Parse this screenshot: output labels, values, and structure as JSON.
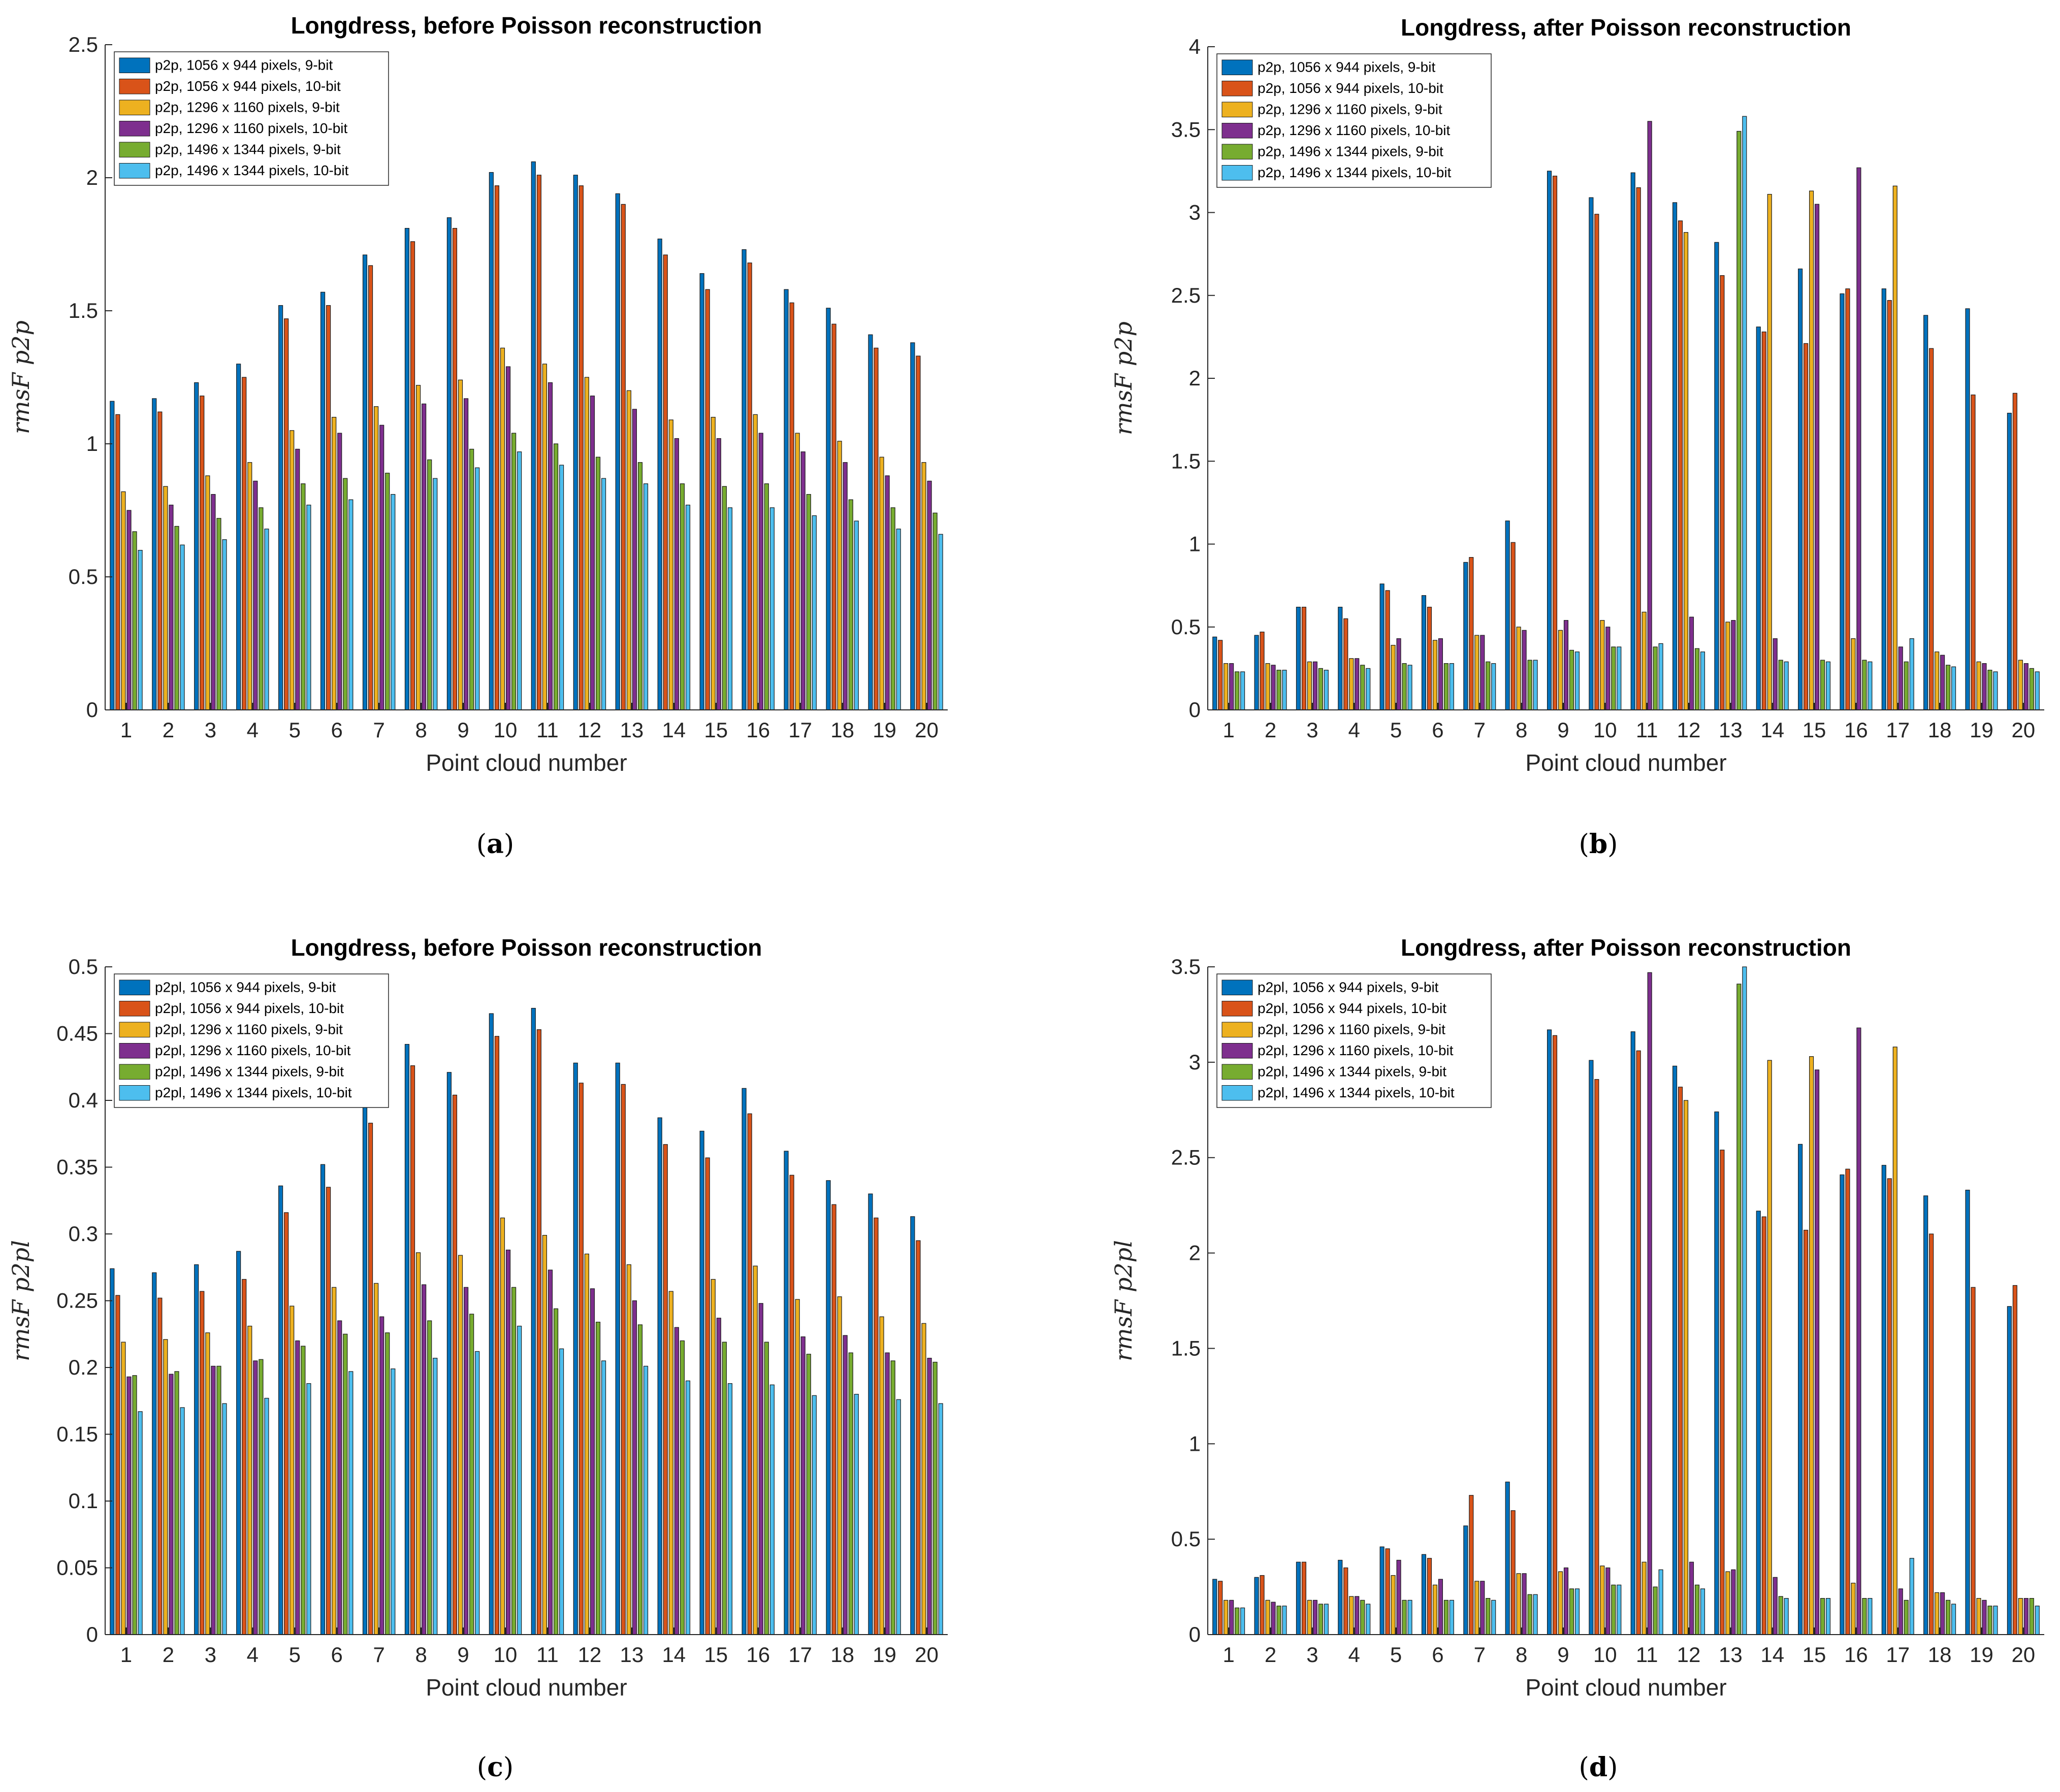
{
  "colors": [
    "#0072BD",
    "#D95319",
    "#EDB120",
    "#7E2F8E",
    "#77AC30",
    "#4DBEEE"
  ],
  "chart_data": [
    {
      "type": "bar",
      "caption": "a",
      "title": "Longdress, before Poisson reconstruction",
      "xlabel": "Point cloud number",
      "ylabel": "rmsF p2p",
      "ylim": [
        0,
        2.5
      ],
      "yticks": [
        "0",
        "0.5",
        "1",
        "1.5",
        "2",
        "2.5"
      ],
      "categories": [
        "1",
        "2",
        "3",
        "4",
        "5",
        "6",
        "7",
        "8",
        "9",
        "10",
        "11",
        "12",
        "13",
        "14",
        "15",
        "16",
        "17",
        "18",
        "19",
        "20"
      ],
      "series": [
        {
          "name": "p2p, 1056 x 944 pixels, 9-bit",
          "values": [
            1.16,
            1.17,
            1.23,
            1.3,
            1.52,
            1.57,
            1.71,
            1.81,
            1.85,
            2.02,
            2.06,
            2.01,
            1.94,
            1.77,
            1.64,
            1.73,
            1.58,
            1.51,
            1.41,
            1.38
          ]
        },
        {
          "name": "p2p, 1056 x 944 pixels, 10-bit",
          "values": [
            1.11,
            1.12,
            1.18,
            1.25,
            1.47,
            1.52,
            1.67,
            1.76,
            1.81,
            1.97,
            2.01,
            1.97,
            1.9,
            1.71,
            1.58,
            1.68,
            1.53,
            1.45,
            1.36,
            1.33
          ]
        },
        {
          "name": "p2p, 1296 x 1160 pixels, 9-bit",
          "values": [
            0.82,
            0.84,
            0.88,
            0.93,
            1.05,
            1.1,
            1.14,
            1.22,
            1.24,
            1.36,
            1.3,
            1.25,
            1.2,
            1.09,
            1.1,
            1.11,
            1.04,
            1.01,
            0.95,
            0.93
          ]
        },
        {
          "name": "p2p, 1296 x 1160 pixels, 10-bit",
          "values": [
            0.75,
            0.77,
            0.81,
            0.86,
            0.98,
            1.04,
            1.07,
            1.15,
            1.17,
            1.29,
            1.23,
            1.18,
            1.13,
            1.02,
            1.02,
            1.04,
            0.97,
            0.93,
            0.88,
            0.86
          ]
        },
        {
          "name": "p2p, 1496 x 1344 pixels, 9-bit",
          "values": [
            0.67,
            0.69,
            0.72,
            0.76,
            0.85,
            0.87,
            0.89,
            0.94,
            0.98,
            1.04,
            1.0,
            0.95,
            0.93,
            0.85,
            0.84,
            0.85,
            0.81,
            0.79,
            0.76,
            0.74
          ]
        },
        {
          "name": "p2p, 1496 x 1344 pixels, 10-bit",
          "values": [
            0.6,
            0.62,
            0.64,
            0.68,
            0.77,
            0.79,
            0.81,
            0.87,
            0.91,
            0.97,
            0.92,
            0.87,
            0.85,
            0.77,
            0.76,
            0.76,
            0.73,
            0.71,
            0.68,
            0.66
          ]
        }
      ]
    },
    {
      "type": "bar",
      "caption": "b",
      "title": "Longdress, after Poisson reconstruction",
      "xlabel": "Point cloud number",
      "ylabel": "rmsF p2p",
      "ylim": [
        0,
        4
      ],
      "yticks": [
        "0",
        "0.5",
        "1",
        "1.5",
        "2",
        "2.5",
        "3",
        "3.5",
        "4"
      ],
      "categories": [
        "1",
        "2",
        "3",
        "4",
        "5",
        "6",
        "7",
        "8",
        "9",
        "10",
        "11",
        "12",
        "13",
        "14",
        "15",
        "16",
        "17",
        "18",
        "19",
        "20"
      ],
      "series": [
        {
          "name": "p2p, 1056 x 944 pixels, 9-bit",
          "values": [
            0.44,
            0.45,
            0.62,
            0.62,
            0.76,
            0.69,
            0.89,
            1.14,
            3.25,
            3.09,
            3.24,
            3.06,
            2.82,
            2.31,
            2.66,
            2.51,
            2.54,
            2.38,
            2.42,
            1.79
          ]
        },
        {
          "name": "p2p, 1056 x 944 pixels, 10-bit",
          "values": [
            0.42,
            0.47,
            0.62,
            0.55,
            0.72,
            0.62,
            0.92,
            1.01,
            3.22,
            2.99,
            3.15,
            2.95,
            2.62,
            2.28,
            2.21,
            2.54,
            2.47,
            2.18,
            1.9,
            1.91
          ]
        },
        {
          "name": "p2p, 1296 x 1160 pixels, 9-bit",
          "values": [
            0.28,
            0.28,
            0.29,
            0.31,
            0.39,
            0.42,
            0.45,
            0.5,
            0.48,
            0.54,
            0.59,
            2.88,
            0.53,
            3.11,
            3.13,
            0.43,
            3.16,
            0.35,
            0.29,
            0.3
          ]
        },
        {
          "name": "p2p, 1296 x 1160 pixels, 10-bit",
          "values": [
            0.28,
            0.27,
            0.29,
            0.31,
            0.43,
            0.43,
            0.45,
            0.48,
            0.54,
            0.5,
            3.55,
            0.56,
            0.54,
            0.43,
            3.05,
            3.27,
            0.38,
            0.33,
            0.28,
            0.28
          ]
        },
        {
          "name": "p2p, 1496 x 1344 pixels, 9-bit",
          "values": [
            0.23,
            0.24,
            0.25,
            0.27,
            0.28,
            0.28,
            0.29,
            0.3,
            0.36,
            0.38,
            0.38,
            0.37,
            3.49,
            0.3,
            0.3,
            0.3,
            0.29,
            0.27,
            0.24,
            0.25
          ]
        },
        {
          "name": "p2p, 1496 x 1344 pixels, 10-bit",
          "values": [
            0.23,
            0.24,
            0.24,
            0.25,
            0.27,
            0.28,
            0.28,
            0.3,
            0.35,
            0.38,
            0.4,
            0.35,
            3.58,
            0.29,
            0.29,
            0.29,
            0.43,
            0.26,
            0.23,
            0.23
          ]
        }
      ]
    },
    {
      "type": "bar",
      "caption": "c",
      "title": "Longdress, before Poisson reconstruction",
      "xlabel": "Point cloud number",
      "ylabel": "rmsF p2pl",
      "ylim": [
        0,
        0.5
      ],
      "yticks": [
        "0",
        "0.05",
        "0.1",
        "0.15",
        "0.2",
        "0.25",
        "0.3",
        "0.35",
        "0.4",
        "0.45",
        "0.5"
      ],
      "categories": [
        "1",
        "2",
        "3",
        "4",
        "5",
        "6",
        "7",
        "8",
        "9",
        "10",
        "11",
        "12",
        "13",
        "14",
        "15",
        "16",
        "17",
        "18",
        "19",
        "20"
      ],
      "series": [
        {
          "name": "p2pl, 1056 x 944 pixels, 9-bit",
          "values": [
            0.274,
            0.271,
            0.277,
            0.287,
            0.336,
            0.352,
            0.395,
            0.442,
            0.421,
            0.465,
            0.469,
            0.428,
            0.428,
            0.387,
            0.377,
            0.409,
            0.362,
            0.34,
            0.33,
            0.313
          ]
        },
        {
          "name": "p2pl, 1056 x 944 pixels, 10-bit",
          "values": [
            0.254,
            0.252,
            0.257,
            0.266,
            0.316,
            0.335,
            0.383,
            0.426,
            0.404,
            0.448,
            0.453,
            0.413,
            0.412,
            0.367,
            0.357,
            0.39,
            0.344,
            0.322,
            0.312,
            0.295
          ]
        },
        {
          "name": "p2pl, 1296 x 1160 pixels, 9-bit",
          "values": [
            0.219,
            0.221,
            0.226,
            0.231,
            0.246,
            0.26,
            0.263,
            0.286,
            0.284,
            0.312,
            0.299,
            0.285,
            0.277,
            0.257,
            0.266,
            0.276,
            0.251,
            0.253,
            0.238,
            0.233
          ]
        },
        {
          "name": "p2pl, 1296 x 1160 pixels, 10-bit",
          "values": [
            0.193,
            0.195,
            0.201,
            0.205,
            0.22,
            0.235,
            0.238,
            0.262,
            0.26,
            0.288,
            0.273,
            0.259,
            0.25,
            0.23,
            0.237,
            0.248,
            0.223,
            0.224,
            0.211,
            0.207
          ]
        },
        {
          "name": "p2pl, 1496 x 1344 pixels, 9-bit",
          "values": [
            0.194,
            0.197,
            0.201,
            0.206,
            0.216,
            0.225,
            0.226,
            0.235,
            0.24,
            0.26,
            0.244,
            0.234,
            0.232,
            0.22,
            0.219,
            0.219,
            0.21,
            0.211,
            0.205,
            0.204
          ]
        },
        {
          "name": "p2pl, 1496 x 1344 pixels, 10-bit",
          "values": [
            0.167,
            0.17,
            0.173,
            0.177,
            0.188,
            0.197,
            0.199,
            0.207,
            0.212,
            0.231,
            0.214,
            0.205,
            0.201,
            0.19,
            0.188,
            0.187,
            0.179,
            0.18,
            0.176,
            0.173
          ]
        }
      ]
    },
    {
      "type": "bar",
      "caption": "d",
      "title": "Longdress, after Poisson reconstruction",
      "xlabel": "Point cloud number",
      "ylabel": "rmsF p2pl",
      "ylim": [
        0,
        3.5
      ],
      "yticks": [
        "0",
        "0.5",
        "1",
        "1.5",
        "2",
        "2.5",
        "3",
        "3.5"
      ],
      "categories": [
        "1",
        "2",
        "3",
        "4",
        "5",
        "6",
        "7",
        "8",
        "9",
        "10",
        "11",
        "12",
        "13",
        "14",
        "15",
        "16",
        "17",
        "18",
        "19",
        "20"
      ],
      "series": [
        {
          "name": "p2pl, 1056 x 944 pixels, 9-bit",
          "values": [
            0.29,
            0.3,
            0.38,
            0.39,
            0.46,
            0.42,
            0.57,
            0.8,
            3.17,
            3.01,
            3.16,
            2.98,
            2.74,
            2.22,
            2.57,
            2.41,
            2.46,
            2.3,
            2.33,
            1.72
          ]
        },
        {
          "name": "p2pl, 1056 x 944 pixels, 10-bit",
          "values": [
            0.28,
            0.31,
            0.38,
            0.35,
            0.45,
            0.4,
            0.73,
            0.65,
            3.14,
            2.91,
            3.06,
            2.87,
            2.54,
            2.19,
            2.12,
            2.44,
            2.39,
            2.1,
            1.82,
            1.83
          ]
        },
        {
          "name": "p2pl, 1296 x 1160 pixels, 9-bit",
          "values": [
            0.18,
            0.18,
            0.18,
            0.2,
            0.31,
            0.26,
            0.28,
            0.32,
            0.33,
            0.36,
            0.38,
            2.8,
            0.33,
            3.01,
            3.03,
            0.27,
            3.08,
            0.22,
            0.19,
            0.19
          ]
        },
        {
          "name": "p2pl, 1296 x 1160 pixels, 10-bit",
          "values": [
            0.18,
            0.17,
            0.18,
            0.2,
            0.39,
            0.29,
            0.28,
            0.32,
            0.35,
            0.35,
            3.47,
            0.38,
            0.34,
            0.3,
            2.96,
            3.18,
            0.24,
            0.22,
            0.18,
            0.19
          ]
        },
        {
          "name": "p2pl, 1496 x 1344 pixels, 9-bit",
          "values": [
            0.14,
            0.15,
            0.16,
            0.18,
            0.18,
            0.18,
            0.19,
            0.21,
            0.24,
            0.26,
            0.25,
            0.26,
            3.41,
            0.2,
            0.19,
            0.19,
            0.18,
            0.18,
            0.15,
            0.19
          ]
        },
        {
          "name": "p2pl, 1496 x 1344 pixels, 10-bit",
          "values": [
            0.14,
            0.15,
            0.16,
            0.16,
            0.18,
            0.18,
            0.18,
            0.21,
            0.24,
            0.26,
            0.34,
            0.24,
            3.5,
            0.19,
            0.19,
            0.19,
            0.4,
            0.16,
            0.15,
            0.15
          ]
        }
      ]
    }
  ]
}
